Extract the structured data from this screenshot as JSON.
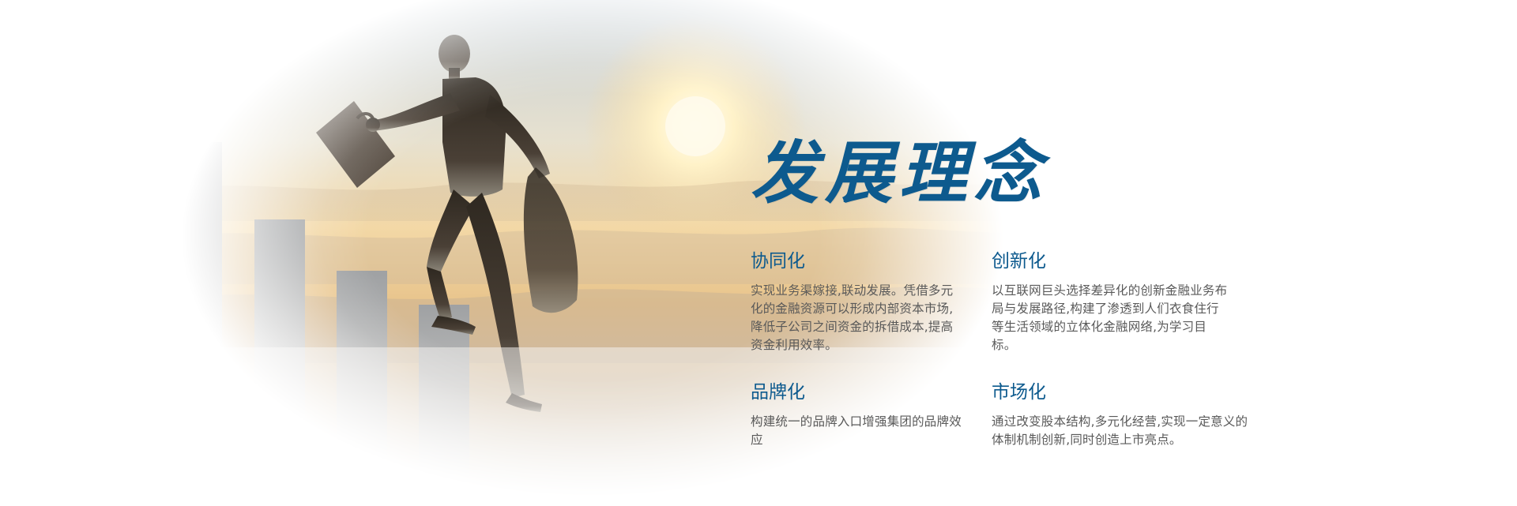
{
  "title": "发展理念",
  "items": [
    {
      "title": "协同化",
      "body": "实现业务渠嫁接,联动发展。凭借多元化的金融资源可以形成内部资本市场,降低子公司之间资金的拆借成本,提高资金利用效率。"
    },
    {
      "title": "创新化",
      "body": "以互联网巨头选择差异化的创新金融业务布局与发展路径,构建了渗透到人们衣食住行等生活领域的立体化金融网络,为学习目标。"
    },
    {
      "title": "品牌化",
      "body": "构建统一的品牌入口增强集团的品牌效应"
    },
    {
      "title": "市场化",
      "body": "通过改变股本结构,多元化经营,实现一定意义的体制机制创新,同时创造上市亮点。"
    }
  ],
  "colors": {
    "accent": "#0d5a8e",
    "body_text": "#595959",
    "sky_top": "#c9d3da",
    "sky_mid": "#f2d9a9",
    "sun": "#fff6d6",
    "silhouette": "#3a3026"
  }
}
